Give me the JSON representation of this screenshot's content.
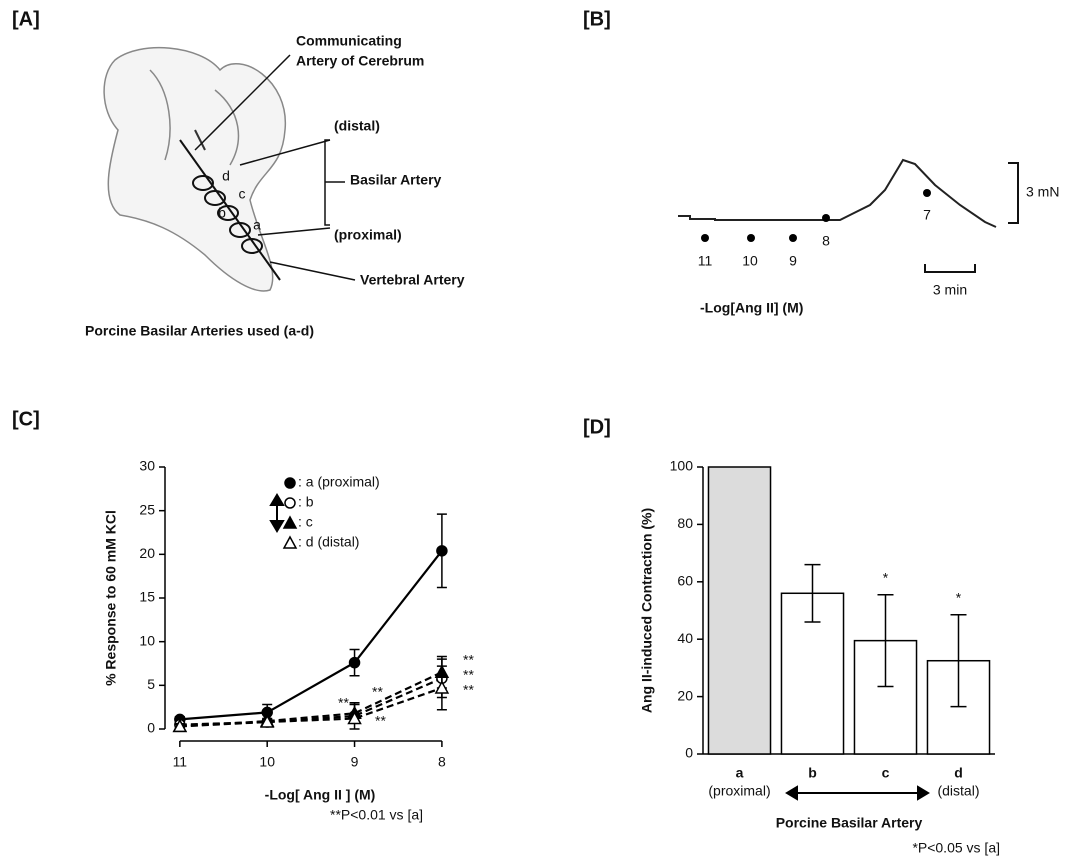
{
  "panel_labels": [
    "[A]",
    "[B]",
    "[C]",
    "[D]"
  ],
  "panel_a": {
    "labels": [
      "Communicating",
      "Artery of Cerebrum",
      "(distal)",
      "Basilar Artery",
      "(proximal)",
      "Vertebral Artery"
    ],
    "segments": [
      "d",
      "c",
      "b",
      "a"
    ],
    "caption": "Porcine Basilar Arteries used (a-d)"
  },
  "panel_b": {
    "doses": [
      "11",
      "10",
      "9",
      "8",
      "7"
    ],
    "force_scale": "3 mN",
    "time_scale": "3 min",
    "axis_label": "-Log[Ang II] (M)"
  },
  "chart_data": [
    {
      "type": "line",
      "x_label": "-Log[ Ang II ] (M)",
      "y_label": "% Response to 60 mM KCl",
      "x": [
        11,
        10,
        9,
        8
      ],
      "xlim": [
        11.17,
        7.85
      ],
      "xticks": [
        11,
        10,
        9,
        8
      ],
      "ylim": [
        0,
        30
      ],
      "yticks": [
        0,
        5,
        10,
        15,
        20,
        25,
        30
      ],
      "series": [
        {
          "name": ": a  (proximal)",
          "color": "#000000",
          "marker": "circle",
          "filled": true,
          "dashed": false,
          "values": [
            1.1,
            1.9,
            7.6,
            20.4
          ],
          "errors": [
            0.3,
            0.9,
            1.5,
            4.2
          ]
        },
        {
          "name": ": b",
          "color": "#000000",
          "marker": "circle",
          "filled": false,
          "dashed": true,
          "values": [
            0.5,
            0.8,
            1.5,
            5.8
          ],
          "errors": [
            0.3,
            0.3,
            1.5,
            2.2
          ]
        },
        {
          "name": ": c",
          "color": "#000000",
          "marker": "triangle",
          "filled": true,
          "dashed": true,
          "values": [
            0.3,
            0.9,
            1.8,
            6.5
          ],
          "errors": [
            0.3,
            0.3,
            1.0,
            1.8
          ]
        },
        {
          "name": ": d  (distal)",
          "color": "#000000",
          "marker": "triangle",
          "filled": false,
          "dashed": true,
          "values": [
            0.3,
            0.8,
            1.2,
            4.7
          ],
          "errors": [
            0.2,
            0.3,
            0.5,
            2.5
          ]
        }
      ],
      "annotations": [
        "**",
        "**",
        "**",
        "**",
        "**",
        "**"
      ],
      "footnote": "**P<0.01 vs [a]"
    },
    {
      "type": "bar",
      "x_label": "Porcine Basilar Artery",
      "y_label": "Ang II-induced Contraction (%)",
      "categories": [
        "a",
        "b",
        "c",
        "d"
      ],
      "category_notes": [
        "(proximal)",
        null,
        null,
        "(distal)"
      ],
      "values": [
        100,
        56,
        39.5,
        32.5
      ],
      "errors": [
        null,
        10,
        16,
        16
      ],
      "colors": [
        "#dcdcdc",
        "#ffffff",
        "#ffffff",
        "#ffffff"
      ],
      "ylim": [
        0,
        100
      ],
      "yticks": [
        0,
        20,
        40,
        60,
        80,
        100
      ],
      "annotations": [
        null,
        null,
        "*",
        "*"
      ],
      "footnote": "*P<0.05 vs [a]"
    }
  ]
}
